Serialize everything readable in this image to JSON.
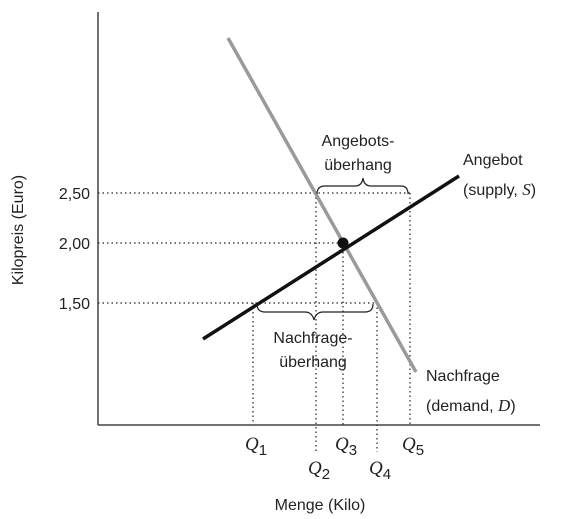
{
  "axes": {
    "y_label": "Kilopreis (Euro)",
    "x_label": "Menge (Kilo)"
  },
  "price_labels": [
    "2,50",
    "2,00",
    "1,50"
  ],
  "quantity_labels": [
    {
      "symbol": "Q",
      "index": "1"
    },
    {
      "symbol": "Q",
      "index": "2"
    },
    {
      "symbol": "Q",
      "index": "3"
    },
    {
      "symbol": "Q",
      "index": "4"
    },
    {
      "symbol": "Q",
      "index": "5"
    }
  ],
  "supply": {
    "line1": "Angebot",
    "line2_open": "(supply, ",
    "symbol": "S",
    "line2_close": ")"
  },
  "demand": {
    "line1": "Nachfrage",
    "line2_open": "(demand, ",
    "symbol": "D",
    "line2_close": ")"
  },
  "surplus": {
    "line1": "Angebots-",
    "line2": "überhang"
  },
  "shortage": {
    "line1": "Nachfrage-",
    "line2": "überhang"
  }
}
